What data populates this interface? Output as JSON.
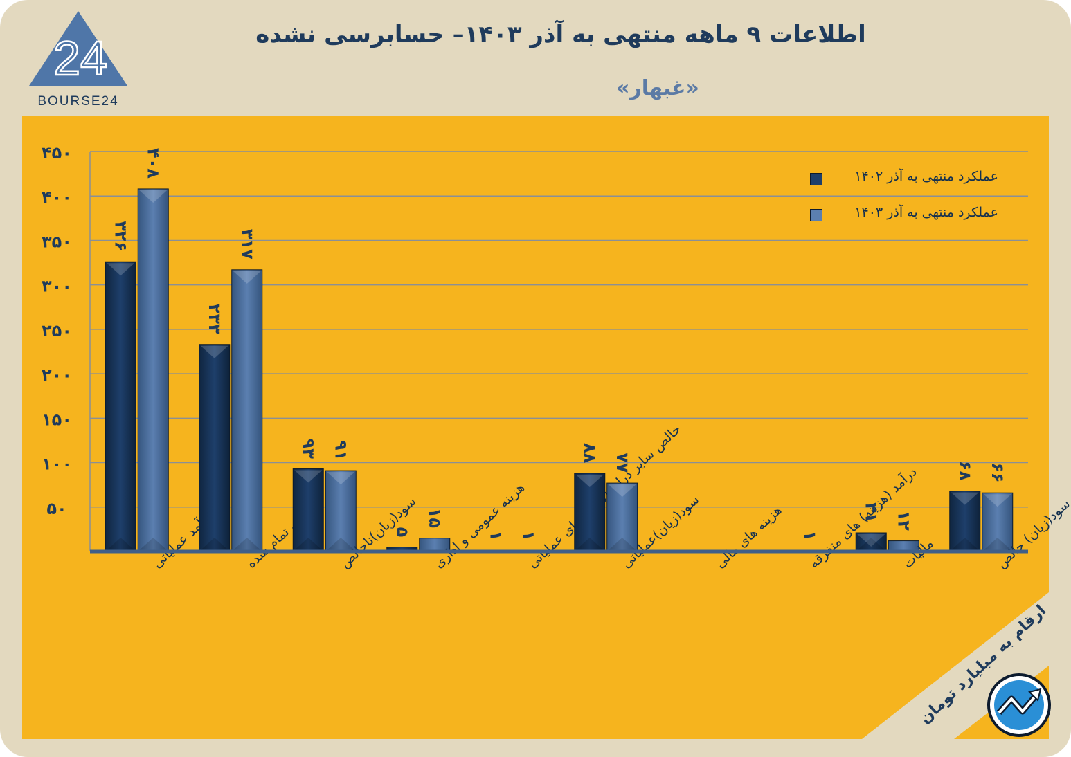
{
  "title": "اطلاعات ۹ ماهه منتهی به آذر ۱۴۰۳– حسابرسی نشده",
  "subtitle": "«غبهار»",
  "brand": {
    "logo_text": "BOURSE24",
    "logo_number": "24"
  },
  "unit_note": "ارقام به میلیارد تومان",
  "colors": {
    "background": "#e3d9bf",
    "panel": "#f6b41e",
    "series_1402": "#1e3f6b",
    "series_1403": "#5b7fb0",
    "title": "#1f3b5c",
    "subtitle": "#5b7aa5"
  },
  "chart_data": {
    "type": "bar",
    "title": "",
    "xlabel": "",
    "ylabel": "",
    "ylim": [
      0,
      450
    ],
    "yticks": [
      50,
      100,
      150,
      200,
      250,
      300,
      350,
      400,
      450
    ],
    "ytick_labels": [
      "۵۰",
      "۱۰۰",
      "۱۵۰",
      "۲۰۰",
      "۲۵۰",
      "۳۰۰",
      "۳۵۰",
      "۴۰۰",
      "۴۵۰"
    ],
    "grid": true,
    "legend_position": "top-right",
    "categories": [
      "درآمد عملیاتی",
      "بهای تمام شده",
      "سود(زیان)ناخالص",
      "هزینه عمومی و اداری",
      "خالص سایر درامد(هزینه)های عملیاتی",
      "سود(زیان)عملیاتی",
      "هزینه های مالی",
      "درآمد (هزینه) های متفرقه",
      "مالیات",
      "سود(زیان) خالص"
    ],
    "series": [
      {
        "name": "عملکرد منتهی به آذر ۱۴۰۲",
        "values": [
          326,
          233,
          93,
          5,
          1,
          88,
          0,
          0,
          21,
          68
        ],
        "labels": [
          "۳۲۶",
          "۲۳۳",
          "۹۳",
          "۵",
          "۱",
          "۸۸",
          "",
          "",
          "۲۱",
          "۶۸"
        ]
      },
      {
        "name": "عملکرد منتهی به آذر ۱۴۰۳",
        "values": [
          408,
          317,
          91,
          15,
          1,
          77,
          0,
          1,
          12,
          66
        ],
        "labels": [
          "۴۰۸",
          "۳۱۷",
          "۹۱",
          "۱۵",
          "۱",
          "۷۷",
          "",
          "۱",
          "۱۲",
          "۶۶"
        ]
      }
    ]
  }
}
